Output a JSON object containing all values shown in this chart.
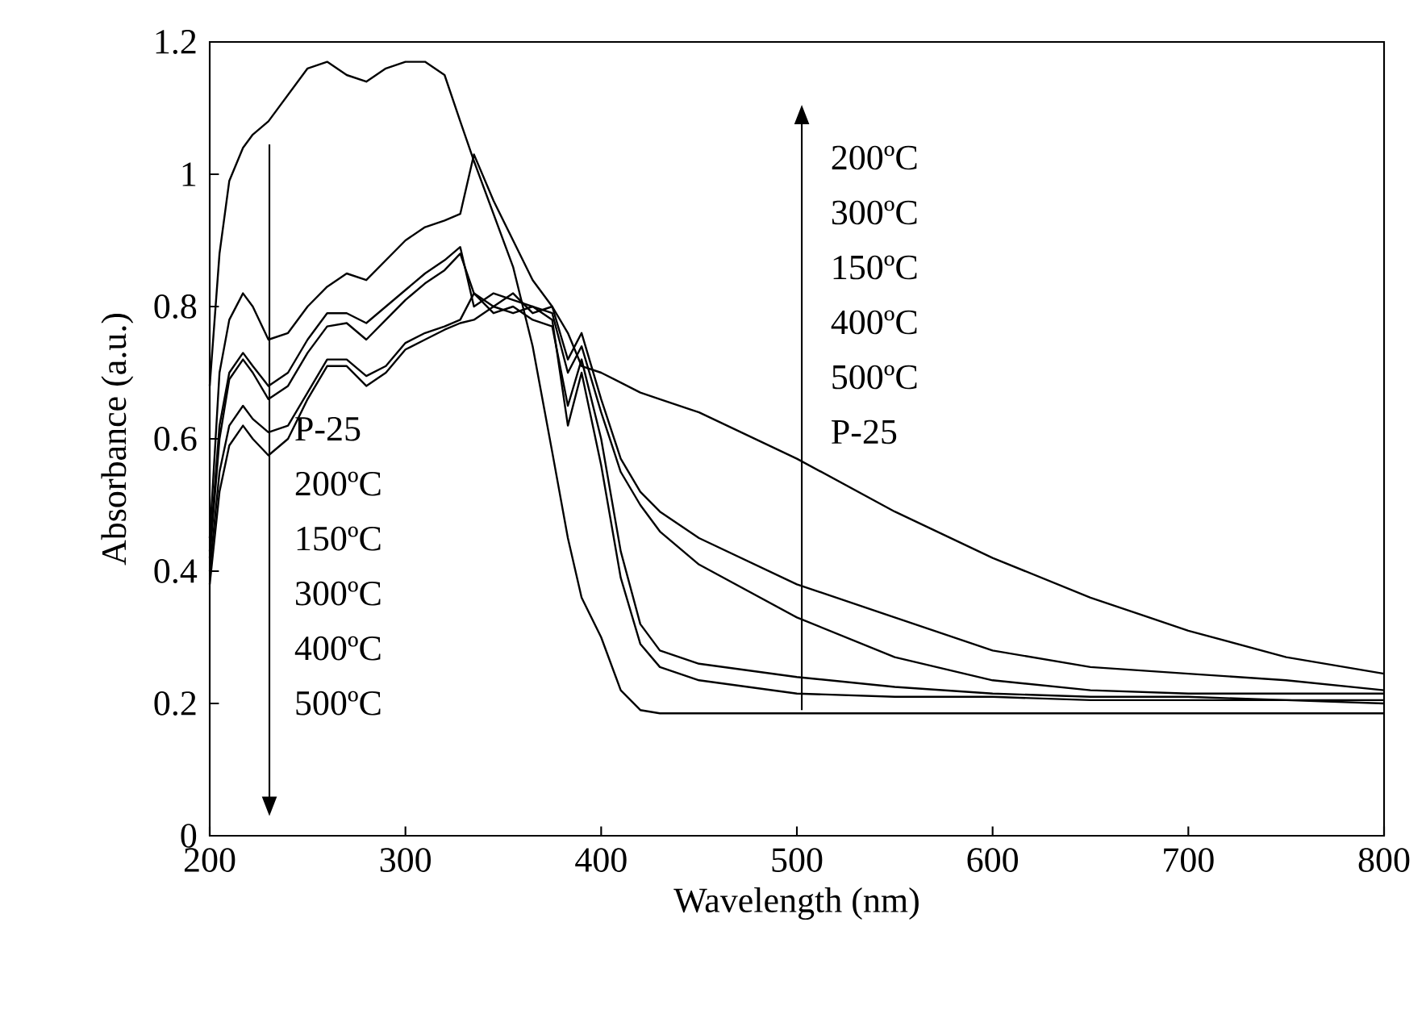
{
  "chart_data": {
    "type": "line",
    "xlabel": "Wavelength (nm)",
    "ylabel": "Absorbance (a.u.)",
    "x": [
      200,
      205,
      210,
      217,
      222,
      230,
      240,
      250,
      260,
      270,
      280,
      290,
      300,
      310,
      320,
      328,
      335,
      345,
      355,
      365,
      375,
      383,
      390,
      400,
      410,
      420,
      430,
      450,
      500,
      550,
      600,
      650,
      700,
      750,
      800
    ],
    "series": [
      {
        "color": "#000000",
        "values": [
          0.68,
          0.88,
          0.99,
          1.04,
          1.06,
          1.08,
          1.12,
          1.16,
          1.17,
          1.15,
          1.14,
          1.16,
          1.17,
          1.17,
          1.15,
          1.08,
          1.02,
          0.94,
          0.86,
          0.74,
          0.58,
          0.45,
          0.36,
          0.3,
          0.22,
          0.19,
          0.185,
          0.185,
          0.185,
          0.185,
          0.185,
          0.185,
          0.185,
          0.185,
          0.185
        ]
      },
      {
        "color": "#000000",
        "values": [
          0.45,
          0.7,
          0.78,
          0.82,
          0.8,
          0.75,
          0.76,
          0.8,
          0.83,
          0.85,
          0.84,
          0.87,
          0.9,
          0.92,
          0.93,
          0.94,
          1.03,
          0.96,
          0.9,
          0.84,
          0.8,
          0.76,
          0.71,
          0.7,
          0.685,
          0.67,
          0.66,
          0.64,
          0.57,
          0.49,
          0.42,
          0.36,
          0.31,
          0.27,
          0.245
        ]
      },
      {
        "color": "#000000",
        "values": [
          0.43,
          0.62,
          0.7,
          0.73,
          0.71,
          0.68,
          0.7,
          0.75,
          0.79,
          0.79,
          0.775,
          0.8,
          0.825,
          0.85,
          0.87,
          0.89,
          0.8,
          0.82,
          0.81,
          0.8,
          0.79,
          0.7,
          0.74,
          0.64,
          0.55,
          0.5,
          0.46,
          0.41,
          0.33,
          0.27,
          0.235,
          0.22,
          0.215,
          0.215,
          0.215
        ]
      },
      {
        "color": "#000000",
        "values": [
          0.42,
          0.6,
          0.69,
          0.72,
          0.7,
          0.66,
          0.68,
          0.73,
          0.77,
          0.775,
          0.75,
          0.78,
          0.81,
          0.835,
          0.855,
          0.88,
          0.82,
          0.8,
          0.82,
          0.79,
          0.8,
          0.72,
          0.76,
          0.66,
          0.57,
          0.52,
          0.49,
          0.45,
          0.38,
          0.33,
          0.28,
          0.255,
          0.245,
          0.235,
          0.22
        ]
      },
      {
        "color": "#000000",
        "values": [
          0.4,
          0.55,
          0.62,
          0.65,
          0.63,
          0.61,
          0.62,
          0.67,
          0.72,
          0.72,
          0.695,
          0.71,
          0.745,
          0.76,
          0.77,
          0.78,
          0.82,
          0.79,
          0.8,
          0.78,
          0.77,
          0.65,
          0.72,
          0.6,
          0.43,
          0.32,
          0.28,
          0.26,
          0.24,
          0.225,
          0.215,
          0.21,
          0.21,
          0.205,
          0.2
        ]
      },
      {
        "color": "#000000",
        "values": [
          0.38,
          0.52,
          0.59,
          0.62,
          0.6,
          0.575,
          0.6,
          0.66,
          0.71,
          0.71,
          0.68,
          0.7,
          0.735,
          0.75,
          0.765,
          0.775,
          0.78,
          0.8,
          0.79,
          0.8,
          0.78,
          0.62,
          0.7,
          0.56,
          0.39,
          0.29,
          0.255,
          0.235,
          0.215,
          0.21,
          0.21,
          0.205,
          0.205,
          0.205,
          0.205
        ]
      }
    ],
    "xlim": [
      200,
      800
    ],
    "ylim": [
      0,
      1.2
    ],
    "xticks": [
      200,
      300,
      400,
      500,
      600,
      700,
      800
    ],
    "yticks": [
      0,
      0.2,
      0.4,
      0.6,
      0.8,
      1,
      1.2
    ],
    "annotations": [
      "P-25",
      "200ºC",
      "150ºC",
      "300ºC",
      "400ºC",
      "500ºC",
      "200ºC",
      "300ºC",
      "150ºC",
      "400ºC",
      "500ºC",
      "P-25"
    ]
  }
}
